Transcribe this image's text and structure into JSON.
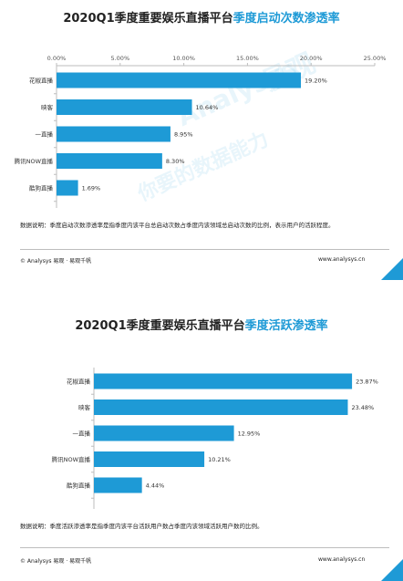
{
  "chart_data": [
    {
      "type": "bar",
      "orientation": "horizontal",
      "title": "2020Q1季度重要娱乐直播平台季度启动次数渗透率",
      "categories": [
        "花椒直播",
        "映客",
        "一直播",
        "腾讯NOW直播",
        "酷狗直播"
      ],
      "values": [
        19.2,
        10.64,
        8.95,
        8.3,
        1.69
      ],
      "value_labels": [
        "19.20%",
        "10.64%",
        "8.95%",
        "8.30%",
        "1.69%"
      ],
      "xlim": [
        0,
        25
      ],
      "ticks": [
        0,
        5,
        10,
        15,
        20,
        25
      ],
      "tick_labels": [
        "0.00%",
        "5.00%",
        "10.00%",
        "15.00%",
        "20.00%",
        "25.00%"
      ],
      "axis_position": "top",
      "grid": false,
      "color": "#1e9ad6"
    },
    {
      "type": "bar",
      "orientation": "horizontal",
      "title": "2020Q1季度重要娱乐直播平台季度活跃渗透率",
      "categories": [
        "花椒直播",
        "映客",
        "一直播",
        "腾讯NOW直播",
        "酷狗直播"
      ],
      "values": [
        23.87,
        23.48,
        12.95,
        10.21,
        4.44
      ],
      "value_labels": [
        "23.87%",
        "23.48%",
        "12.95%",
        "10.21%",
        "4.44%"
      ],
      "xlim": [
        0,
        24.2
      ],
      "grid": false,
      "color": "#1e9ad6"
    }
  ],
  "panel1": {
    "title_main": "2020Q1季度重要娱乐直播平台",
    "title_accent": "季度启动次数渗透率",
    "note": "数据说明：季度启动次数渗透率是指季度内该平台总启动次数占季度内该领域总启动次数的比例，表示用户的活跃程度。",
    "footer_left": "© Analysys 易观 · 易观千帆",
    "footer_right": "www.analysys.cn"
  },
  "panel2": {
    "title_main": "2020Q1季度重要娱乐直播平台",
    "title_accent": "季度活跃渗透率",
    "note": "数据说明：季度活跃渗透率是指季度内该平台活跃用户数占季度内该领域活跃用户数的比例。",
    "footer_left": "© Analysys 易观 · 易观千帆",
    "footer_right": "www.analysys.cn"
  },
  "watermark": {
    "brand_en": "Analysys",
    "brand_cn": "易观",
    "slogan": "你要的数据能力"
  },
  "colors": {
    "bar": "#1e9ad6",
    "accent": "#1e9ad6"
  }
}
